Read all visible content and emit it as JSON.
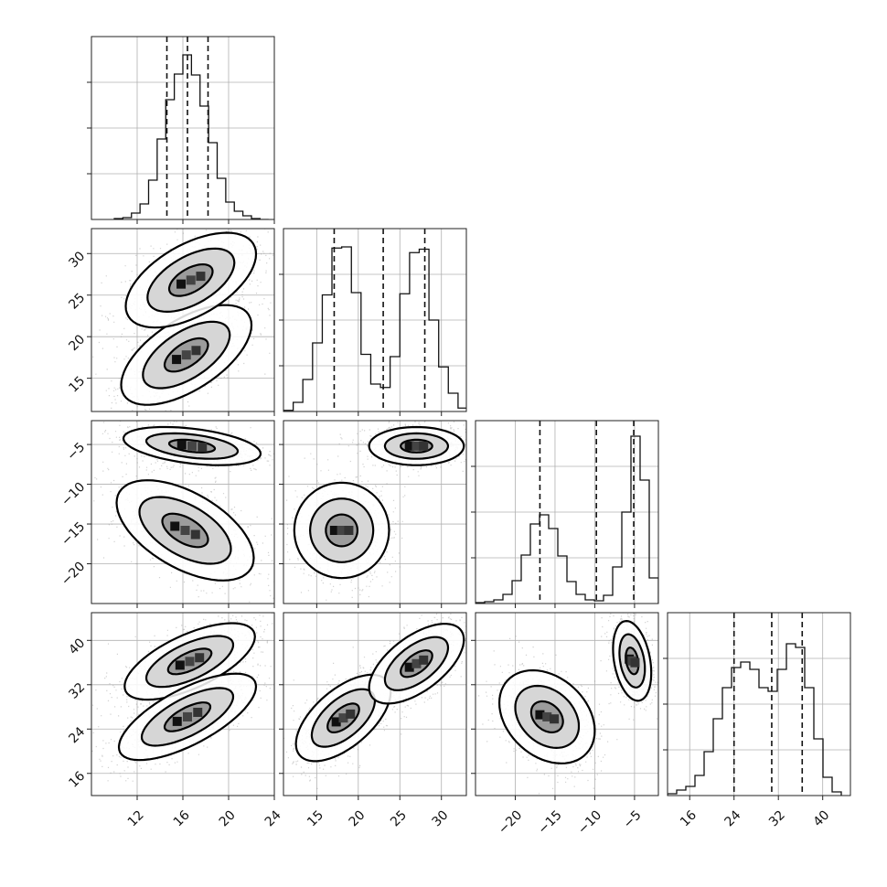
{
  "chart_data": {
    "type": "corner",
    "grid": true,
    "parameters": [
      {
        "id": "p0",
        "range": [
          8,
          24
        ],
        "ticks": [
          12,
          16,
          20,
          24
        ],
        "tick_labels": [
          "12",
          "16",
          "20",
          "24"
        ],
        "hist_edges": [
          10,
          10.75,
          11.5,
          12.25,
          13,
          13.75,
          14.5,
          15.25,
          16,
          16.75,
          17.5,
          18.25,
          19,
          19.75,
          20.5,
          21.25,
          22,
          22.75,
          23.5
        ],
        "hist_counts": [
          1,
          2,
          7,
          17,
          43,
          88,
          131,
          159,
          180,
          158,
          124,
          84,
          45,
          19,
          9,
          4,
          1,
          0
        ],
        "hist_max": 200,
        "quantiles": [
          14.6,
          16.4,
          18.2
        ]
      },
      {
        "id": "p1",
        "range": [
          11,
          33
        ],
        "ticks": [
          15,
          20,
          25,
          30
        ],
        "tick_labels": [
          "15",
          "20",
          "25",
          "30"
        ],
        "hist_edges": [
          11,
          12.17,
          13.33,
          14.5,
          15.67,
          16.83,
          18,
          19.17,
          20.33,
          21.5,
          22.67,
          23.83,
          25,
          26.17,
          27.33,
          28.5,
          29.67,
          30.83,
          32,
          33.17
        ],
        "hist_counts": [
          1,
          8,
          28,
          60,
          102,
          143,
          144,
          104,
          50,
          24,
          21,
          48,
          103,
          139,
          142,
          80,
          39,
          16,
          3
        ],
        "hist_max": 160,
        "quantiles": [
          17.1,
          23.0,
          28.0
        ]
      },
      {
        "id": "p2",
        "range": [
          -25,
          -2
        ],
        "ticks": [
          -20,
          -15,
          -10,
          -5
        ],
        "tick_labels": [
          "−20",
          "−15",
          "−10",
          "−5"
        ],
        "hist_edges": [
          -25,
          -23.85,
          -22.7,
          -21.55,
          -20.4,
          -19.25,
          -18.1,
          -16.95,
          -15.8,
          -14.65,
          -13.5,
          -12.35,
          -11.2,
          -10.05,
          -8.9,
          -7.75,
          -6.6,
          -5.45,
          -4.3,
          -3.15,
          -2
        ],
        "hist_counts": [
          1,
          2,
          4,
          10,
          25,
          53,
          87,
          97,
          82,
          52,
          24,
          10,
          4,
          3,
          9,
          40,
          100,
          183,
          135,
          28
        ],
        "hist_max": 200,
        "quantiles": [
          -16.9,
          -9.8,
          -5.1
        ]
      },
      {
        "id": "p3",
        "range": [
          12,
          45
        ],
        "ticks": [
          16,
          24,
          32,
          40
        ],
        "tick_labels": [
          "16",
          "24",
          "32",
          "40"
        ],
        "hist_edges": [
          12,
          13.65,
          15.3,
          16.95,
          18.6,
          20.25,
          21.9,
          23.55,
          25.2,
          26.85,
          28.5,
          30.15,
          31.8,
          33.45,
          35.1,
          36.75,
          38.4,
          40.05,
          41.7,
          43.35
        ],
        "hist_counts": [
          1,
          3,
          5,
          11,
          24,
          42,
          59,
          70,
          73,
          69,
          59,
          57,
          69,
          83,
          81,
          59,
          31,
          10,
          2
        ],
        "hist_max": 100,
        "quantiles": [
          24.0,
          30.8,
          36.3
        ]
      }
    ],
    "density_panels": [
      {
        "x": "p0",
        "y": "p1",
        "clusters": [
          {
            "mean": [
              16.3,
              17.8
            ],
            "sd": [
              1.9,
              2.0
            ],
            "rho": 0.6
          },
          {
            "mean": [
              16.7,
              26.8
            ],
            "sd": [
              1.9,
              1.9
            ],
            "rho": 0.55
          }
        ]
      },
      {
        "x": "p0",
        "y": "p2",
        "clusters": [
          {
            "mean": [
              16.8,
              -5.2
            ],
            "sd": [
              2.0,
              0.8
            ],
            "rho": -0.4
          },
          {
            "mean": [
              16.2,
              -15.8
            ],
            "sd": [
              2.0,
              2.1
            ],
            "rho": -0.55
          }
        ]
      },
      {
        "x": "p1",
        "y": "p2",
        "clusters": [
          {
            "mean": [
              18.0,
              -15.8
            ],
            "sd": [
              1.9,
              2.0
            ],
            "rho": 0.0
          },
          {
            "mean": [
              27.0,
              -5.2
            ],
            "sd": [
              1.9,
              0.8
            ],
            "rho": 0.0
          }
        ]
      },
      {
        "x": "p0",
        "y": "p3",
        "clusters": [
          {
            "mean": [
              16.6,
              36.2
            ],
            "sd": [
              1.9,
              2.3
            ],
            "rho": 0.65
          },
          {
            "mean": [
              16.4,
              26.2
            ],
            "sd": [
              2.0,
              2.6
            ],
            "rho": 0.7
          }
        ]
      },
      {
        "x": "p1",
        "y": "p3",
        "clusters": [
          {
            "mean": [
              18.2,
              26.0
            ],
            "sd": [
              1.9,
              2.6
            ],
            "rho": 0.6
          },
          {
            "mean": [
              27.0,
              35.8
            ],
            "sd": [
              1.9,
              2.4
            ],
            "rho": 0.6
          }
        ]
      },
      {
        "x": "p2",
        "y": "p3",
        "clusters": [
          {
            "mean": [
              -16.0,
              26.2
            ],
            "sd": [
              2.0,
              2.8
            ],
            "rho": -0.3
          },
          {
            "mean": [
              -5.3,
              36.3
            ],
            "sd": [
              0.8,
              2.4
            ],
            "rho": -0.3
          }
        ]
      }
    ],
    "contour_levels_sigma": [
      0.5,
      1.0,
      1.5
    ]
  }
}
